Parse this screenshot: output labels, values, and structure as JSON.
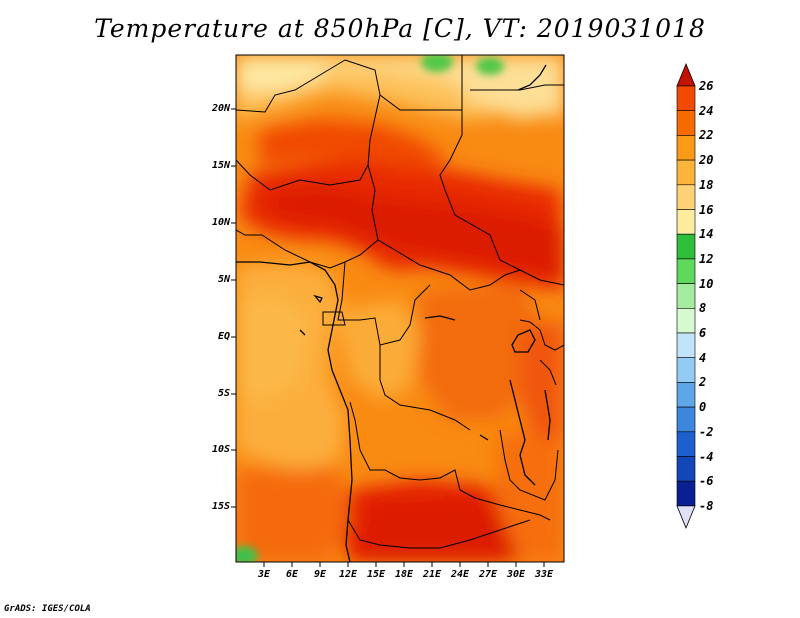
{
  "title": "Temperature at 850hPa [C], VT: 2019031018",
  "credit": "GrADS: IGES/COLA",
  "lat_labels": [
    "20N",
    "15N",
    "10N",
    "5N",
    "EQ",
    "5S",
    "10S",
    "15S"
  ],
  "lon_labels": [
    "3E",
    "6E",
    "9E",
    "12E",
    "15E",
    "18E",
    "21E",
    "24E",
    "27E",
    "30E",
    "33E"
  ],
  "colorbar": {
    "labels": [
      "26",
      "24",
      "22",
      "20",
      "18",
      "16",
      "14",
      "12",
      "10",
      "8",
      "6",
      "4",
      "2",
      "0",
      "-2",
      "-4",
      "-6",
      "-8"
    ],
    "colors": [
      "#e41c00",
      "#f24a00",
      "#f56b00",
      "#fa9a16",
      "#fdb43a",
      "#fdd277",
      "#fdeb9f",
      "#2fbd3c",
      "#5ed85d",
      "#a4eda0",
      "#d6f9cf",
      "#c2e4fb",
      "#94cbf4",
      "#5fa6e8",
      "#3d86dd",
      "#1d5fcf",
      "#1346b8",
      "#0a2092",
      "#0c0a6a"
    ],
    "top_arrow_color": "#c41200",
    "bottom_arrow_color": "#e0e0f8"
  }
}
